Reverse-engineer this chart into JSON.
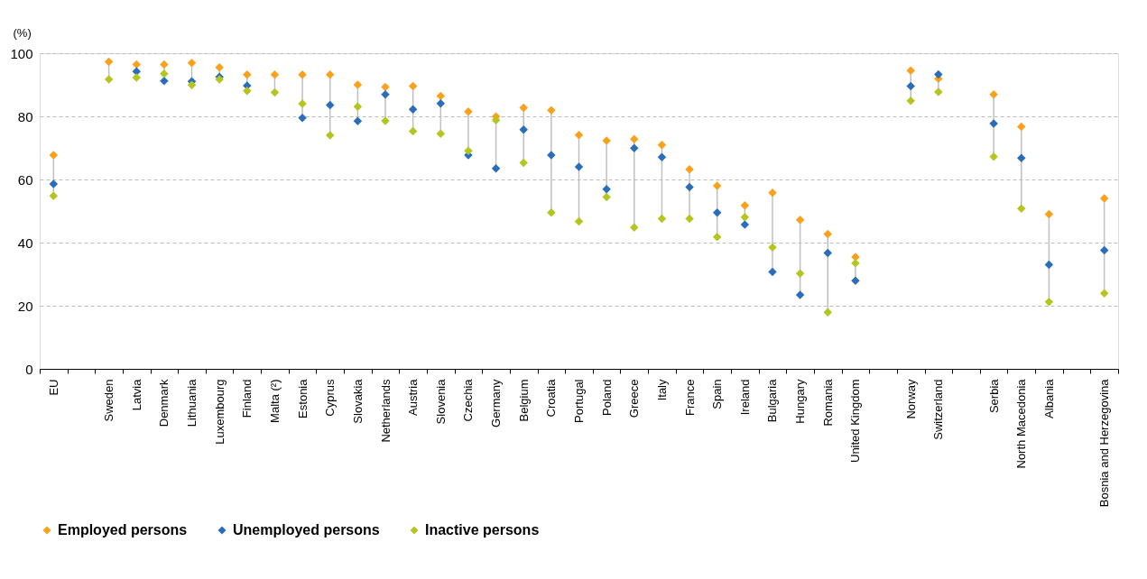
{
  "chart_data": {
    "type": "scatter",
    "ylabel": "(%)",
    "categories": [
      "EU",
      null,
      "Sweden",
      "Latvia",
      "Denmark",
      "Lithuania",
      "Luxembourg",
      "Finland",
      "Malta (²)",
      "Estonia",
      "Cyprus",
      "Slovakia",
      "Netherlands",
      "Austria",
      "Slovenia",
      "Czechia",
      "Germany",
      "Belgium",
      "Croatia",
      "Portugal",
      "Poland",
      "Greece",
      "Italy",
      "France",
      "Spain",
      "Ireland",
      "Bulgaria",
      "Hungary",
      "Romania",
      "United Kingdom",
      null,
      "Norway",
      "Switzerland",
      null,
      "Serbia",
      "North Macedonia",
      "Albania",
      null,
      "Bosnia and Herzegovina"
    ],
    "series": [
      {
        "name": "Employed persons",
        "color": "#f9a11b",
        "values": [
          67.7,
          null,
          97.3,
          96.4,
          96.4,
          96.9,
          95.5,
          93.2,
          93.2,
          93.2,
          93.2,
          90.0,
          89.3,
          89.6,
          86.4,
          81.5,
          79.9,
          82.7,
          81.9,
          74.1,
          72.3,
          72.8,
          70.9,
          63.2,
          58.0,
          51.8,
          55.8,
          47.2,
          42.7,
          35.4,
          null,
          94.5,
          91.9,
          null,
          86.9,
          76.7,
          49.0,
          null,
          54.0
        ]
      },
      {
        "name": "Unemployed persons",
        "color": "#2a6ebb",
        "values": [
          58.6,
          null,
          null,
          94.2,
          91.2,
          91.1,
          92.5,
          89.7,
          null,
          79.5,
          83.6,
          78.5,
          86.9,
          82.2,
          84.1,
          67.7,
          63.5,
          75.8,
          67.7,
          64.0,
          56.9,
          69.9,
          67.1,
          57.6,
          49.5,
          45.7,
          30.7,
          23.4,
          36.7,
          27.9,
          null,
          89.6,
          93.3,
          null,
          77.7,
          66.8,
          33.0,
          null,
          37.6
        ]
      },
      {
        "name": "Inactive persons",
        "color": "#b5c520",
        "values": [
          54.8,
          null,
          91.7,
          92.3,
          93.5,
          89.9,
          91.7,
          88.1,
          87.6,
          84.0,
          74.0,
          83.1,
          78.6,
          75.3,
          74.5,
          69.1,
          78.8,
          65.3,
          49.5,
          46.7,
          54.4,
          44.8,
          47.6,
          47.6,
          41.8,
          48.1,
          38.5,
          30.2,
          17.9,
          33.5,
          null,
          84.9,
          87.7,
          null,
          67.2,
          50.8,
          21.2,
          null,
          23.9
        ]
      }
    ],
    "ylim": [
      0,
      100
    ],
    "yticks": [
      0,
      20,
      40,
      60,
      80,
      100
    ],
    "grid": "y",
    "legend": "bottom",
    "marker": "diamond"
  }
}
